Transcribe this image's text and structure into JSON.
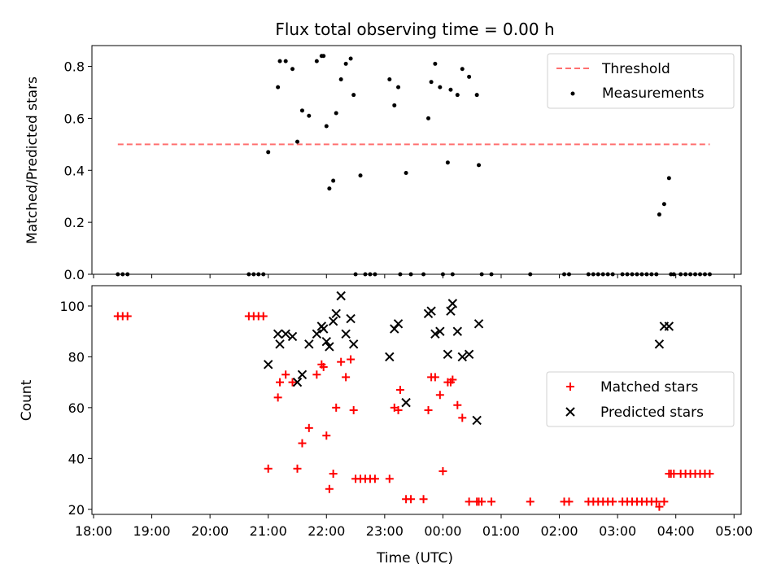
{
  "chart_data": [
    {
      "type": "scatter",
      "title": "Flux total observing time = 0.00 h",
      "xlabel": "",
      "ylabel": "Matched/Predicted stars",
      "ylim": [
        0,
        0.88
      ],
      "yticks": [
        0.0,
        0.2,
        0.4,
        0.6,
        0.8
      ],
      "ytick_labels": [
        "0.0",
        "0.2",
        "0.4",
        "0.6",
        "0.8"
      ],
      "legend": {
        "position": "top-right",
        "entries": [
          "Threshold",
          "Measurements"
        ]
      },
      "threshold": {
        "name": "Threshold",
        "value": 0.5,
        "x_start": "18:25",
        "x_end": "04:35",
        "color": "#ff7070"
      },
      "series": [
        {
          "name": "Measurements",
          "color": "#000000",
          "x": [
            "18:25",
            "18:30",
            "18:35",
            "20:40",
            "20:45",
            "20:50",
            "20:55",
            "21:00",
            "21:10",
            "21:12",
            "21:18",
            "21:25",
            "21:30",
            "21:35",
            "21:42",
            "21:50",
            "21:55",
            "21:57",
            "22:00",
            "22:03",
            "22:07",
            "22:10",
            "22:15",
            "22:20",
            "22:25",
            "22:28",
            "22:30",
            "22:35",
            "22:40",
            "22:45",
            "22:50",
            "23:05",
            "23:10",
            "23:14",
            "23:16",
            "23:22",
            "23:27",
            "23:40",
            "23:45",
            "23:48",
            "23:52",
            "23:57",
            "00:00",
            "00:05",
            "00:08",
            "00:10",
            "00:15",
            "00:20",
            "00:27",
            "00:35",
            "00:37",
            "00:40",
            "00:50",
            "01:30",
            "02:05",
            "02:10",
            "02:30",
            "02:35",
            "02:40",
            "02:45",
            "02:50",
            "02:55",
            "03:05",
            "03:10",
            "03:15",
            "03:20",
            "03:25",
            "03:30",
            "03:35",
            "03:40",
            "03:43",
            "03:48",
            "03:53",
            "03:55",
            "03:58",
            "04:05",
            "04:10",
            "04:15",
            "04:20",
            "04:25",
            "04:30",
            "04:35"
          ],
          "y": [
            0,
            0,
            0,
            0,
            0,
            0,
            0,
            0.47,
            0.72,
            0.82,
            0.82,
            0.79,
            0.51,
            0.63,
            0.61,
            0.82,
            0.84,
            0.84,
            0.57,
            0.33,
            0.36,
            0.62,
            0.75,
            0.81,
            0.83,
            0.69,
            0,
            0.38,
            0,
            0,
            0,
            0.75,
            0.65,
            0.72,
            0,
            0.39,
            0,
            0,
            0.6,
            0.74,
            0.81,
            0.72,
            0,
            0.43,
            0.71,
            0,
            0.69,
            0.79,
            0.76,
            0.69,
            0.42,
            0,
            0,
            0,
            0,
            0,
            0,
            0,
            0,
            0,
            0,
            0,
            0,
            0,
            0,
            0,
            0,
            0,
            0,
            0,
            0.23,
            0.27,
            0.37,
            0,
            0,
            0,
            0,
            0,
            0,
            0,
            0,
            0
          ]
        }
      ]
    },
    {
      "type": "scatter",
      "title": "",
      "xlabel": "Time (UTC)",
      "ylabel": "Count",
      "ylim": [
        18,
        108
      ],
      "yticks": [
        20,
        40,
        60,
        80,
        100
      ],
      "ytick_labels": [
        "20",
        "40",
        "60",
        "80",
        "100"
      ],
      "xrange": [
        "18:00",
        "05:00"
      ],
      "xticks": [
        "18:00",
        "19:00",
        "20:00",
        "21:00",
        "22:00",
        "23:00",
        "00:00",
        "01:00",
        "02:00",
        "03:00",
        "04:00",
        "05:00"
      ],
      "legend": {
        "position": "center-right",
        "entries": [
          "Matched stars",
          "Predicted stars"
        ]
      },
      "series": [
        {
          "name": "Matched stars",
          "color": "#ff0000",
          "x": [
            "18:25",
            "18:30",
            "18:35",
            "20:40",
            "20:45",
            "20:50",
            "20:55",
            "21:00",
            "21:10",
            "21:12",
            "21:18",
            "21:25",
            "21:30",
            "21:35",
            "21:42",
            "21:50",
            "21:55",
            "21:57",
            "22:00",
            "22:03",
            "22:07",
            "22:10",
            "22:15",
            "22:20",
            "22:25",
            "22:28",
            "22:30",
            "22:35",
            "22:40",
            "22:45",
            "22:50",
            "23:05",
            "23:10",
            "23:14",
            "23:16",
            "23:22",
            "23:27",
            "23:40",
            "23:45",
            "23:48",
            "23:52",
            "23:57",
            "00:00",
            "00:05",
            "00:08",
            "00:10",
            "00:15",
            "00:20",
            "00:27",
            "00:35",
            "00:37",
            "00:40",
            "00:50",
            "01:30",
            "02:05",
            "02:10",
            "02:30",
            "02:35",
            "02:40",
            "02:45",
            "02:50",
            "02:55",
            "03:05",
            "03:10",
            "03:15",
            "03:20",
            "03:25",
            "03:30",
            "03:35",
            "03:40",
            "03:43",
            "03:48",
            "03:53",
            "03:55",
            "03:58",
            "04:05",
            "04:10",
            "04:15",
            "04:20",
            "04:25",
            "04:30",
            "04:35"
          ],
          "y": [
            96,
            96,
            96,
            96,
            96,
            96,
            96,
            36,
            64,
            70,
            73,
            70,
            36,
            46,
            52,
            73,
            77,
            76,
            49,
            28,
            34,
            60,
            78,
            72,
            79,
            59,
            32,
            32,
            32,
            32,
            32,
            32,
            60,
            59,
            67,
            24,
            24,
            24,
            59,
            72,
            72,
            65,
            35,
            70,
            70,
            71,
            61,
            56,
            23,
            23,
            23,
            23,
            23,
            23,
            23,
            23,
            23,
            23,
            23,
            23,
            23,
            23,
            23,
            23,
            23,
            23,
            23,
            23,
            23,
            23,
            21,
            23,
            34,
            34,
            34,
            34,
            34,
            34,
            34,
            34,
            34,
            34
          ]
        },
        {
          "name": "Predicted stars",
          "color": "#000000",
          "x": [
            "21:00",
            "21:10",
            "21:12",
            "21:18",
            "21:25",
            "21:30",
            "21:35",
            "21:42",
            "21:50",
            "21:55",
            "21:57",
            "22:00",
            "22:03",
            "22:07",
            "22:10",
            "22:15",
            "22:20",
            "22:25",
            "22:28",
            "23:05",
            "23:10",
            "23:14",
            "23:22",
            "23:45",
            "23:48",
            "23:52",
            "23:57",
            "00:05",
            "00:08",
            "00:10",
            "00:15",
            "00:20",
            "00:27",
            "00:35",
            "00:37",
            "03:43",
            "03:48",
            "03:53"
          ],
          "y": [
            77,
            89,
            85,
            89,
            88,
            70,
            73,
            85,
            89,
            92,
            91,
            86,
            84,
            94,
            97,
            104,
            89,
            95,
            85,
            80,
            91,
            93,
            62,
            97,
            98,
            89,
            90,
            81,
            98,
            101,
            90,
            80,
            81,
            55,
            93,
            85,
            92,
            92
          ]
        }
      ]
    }
  ]
}
